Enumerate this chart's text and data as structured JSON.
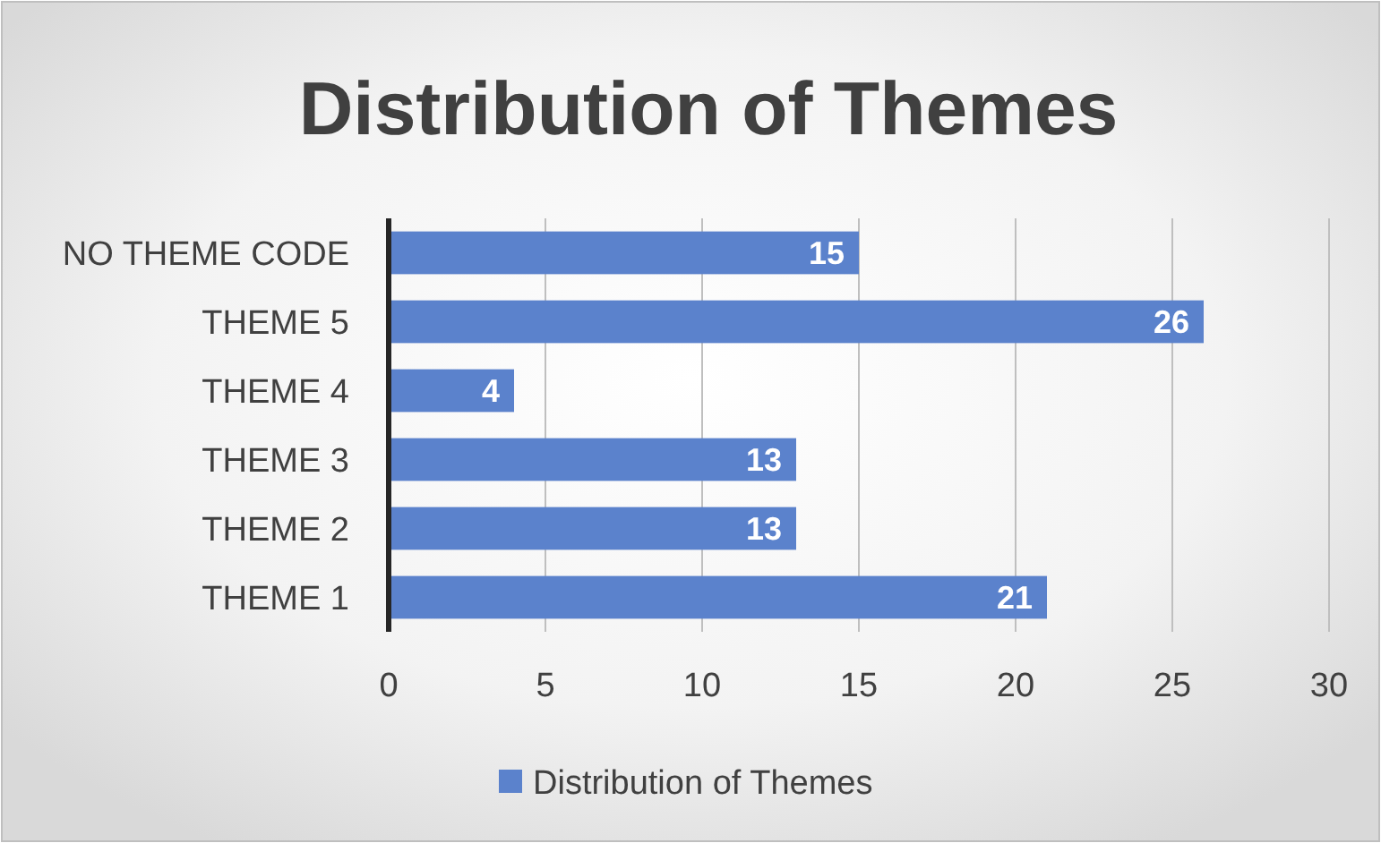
{
  "chart_data": {
    "type": "bar",
    "orientation": "horizontal",
    "title": "Distribution of Themes",
    "categories": [
      "NO THEME CODE",
      "THEME 5",
      "THEME 4",
      "THEME 3",
      "THEME 2",
      "THEME 1"
    ],
    "series": [
      {
        "name": "Distribution of Themes",
        "color": "#5b82cc",
        "values": [
          15,
          26,
          4,
          13,
          13,
          21
        ]
      }
    ],
    "xlim": [
      0,
      30
    ],
    "xticks": [
      0,
      5,
      10,
      15,
      20,
      25,
      30
    ],
    "grid": "x",
    "legend": "bottom",
    "data_labels": true
  }
}
